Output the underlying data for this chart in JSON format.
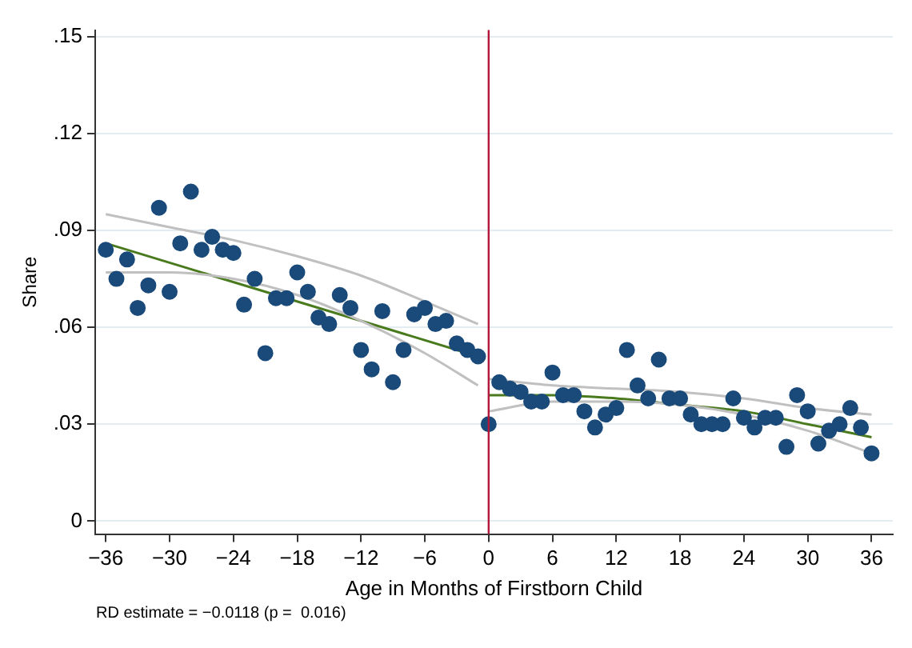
{
  "chart_data": {
    "type": "scatter",
    "xlabel": "Age in Months of Firstborn Child",
    "ylabel": "Share",
    "annotations": [
      "RD estimate = −0.0118 (p =  0.016)"
    ],
    "xlim": [
      -37,
      38
    ],
    "xticks": [
      {
        "value": -36,
        "label": "−36"
      },
      {
        "value": -30,
        "label": "−30"
      },
      {
        "value": -24,
        "label": "−24"
      },
      {
        "value": -18,
        "label": "−18"
      },
      {
        "value": -12,
        "label": "−12"
      },
      {
        "value": -6,
        "label": "−6"
      },
      0,
      6,
      12,
      18,
      24,
      30,
      36
    ],
    "ylim": [
      -0.004,
      0.152
    ],
    "yticks": [
      0,
      {
        "value": 0.03,
        "label": ".03"
      },
      {
        "value": 0.06,
        "label": ".06"
      },
      {
        "value": 0.09,
        "label": ".09"
      },
      {
        "value": 0.12,
        "label": ".12"
      },
      {
        "value": 0.15,
        "label": ".15"
      }
    ],
    "grid": "y",
    "legend": false,
    "ref_lines": [
      {
        "axis": "x",
        "value": 0,
        "color": "#b2163a"
      }
    ],
    "series": [
      {
        "marker": "circle",
        "color": "#1a4a7a",
        "x": [
          -36,
          -35,
          -34,
          -33,
          -32,
          -31,
          -30,
          -29,
          -28,
          -27,
          -26,
          -25,
          -24,
          -23,
          -22,
          -21,
          -20,
          -19,
          -18,
          -17,
          -16,
          -15,
          -14,
          -13,
          -12,
          -11,
          -10,
          -9,
          -8,
          -7,
          -6,
          -5,
          -4,
          -3,
          -2,
          -1,
          0,
          1,
          2,
          3,
          4,
          5,
          6,
          7,
          8,
          9,
          10,
          11,
          12,
          13,
          14,
          15,
          16,
          17,
          18,
          19,
          20,
          21,
          22,
          23,
          24,
          25,
          26,
          27,
          28,
          29,
          30,
          31,
          32,
          33,
          34,
          35,
          36
        ],
        "values": [
          0.084,
          0.075,
          0.081,
          0.066,
          0.073,
          0.097,
          0.071,
          0.086,
          0.102,
          0.084,
          0.088,
          0.084,
          0.083,
          0.067,
          0.075,
          0.052,
          0.069,
          0.069,
          0.077,
          0.071,
          0.063,
          0.061,
          0.07,
          0.066,
          0.053,
          0.047,
          0.065,
          0.043,
          0.053,
          0.064,
          0.066,
          0.061,
          0.062,
          0.055,
          0.053,
          0.051,
          0.03,
          0.043,
          0.041,
          0.04,
          0.037,
          0.037,
          0.046,
          0.039,
          0.039,
          0.034,
          0.029,
          0.033,
          0.035,
          0.053,
          0.042,
          0.038,
          0.05,
          0.038,
          0.038,
          0.033,
          0.03,
          0.03,
          0.03,
          0.038,
          0.032,
          0.029,
          0.032,
          0.032,
          0.023,
          0.039,
          0.034,
          0.024,
          0.028,
          0.03,
          0.035,
          0.029,
          0.021
        ]
      },
      {
        "type": "line",
        "color": "#c0c0c0",
        "x": [
          -36,
          -30,
          -24,
          -18,
          -12,
          -6,
          -1
        ],
        "values": [
          0.095,
          0.091,
          0.087,
          0.082,
          0.076,
          0.068,
          0.061
        ]
      },
      {
        "type": "line",
        "color": "#c0c0c0",
        "x": [
          -36,
          -30,
          -24,
          -18,
          -12,
          -6,
          -1
        ],
        "values": [
          0.077,
          0.077,
          0.075,
          0.07,
          0.062,
          0.052,
          0.042
        ]
      },
      {
        "type": "line",
        "color": "#4a7a1e",
        "x": [
          -36,
          -1
        ],
        "values": [
          0.086,
          0.051
        ]
      },
      {
        "type": "line",
        "color": "#c0c0c0",
        "x": [
          0,
          6,
          12,
          18,
          24,
          30,
          36
        ],
        "values": [
          0.044,
          0.042,
          0.041,
          0.04,
          0.038,
          0.035,
          0.033
        ]
      },
      {
        "type": "line",
        "color": "#c0c0c0",
        "x": [
          0,
          6,
          12,
          18,
          24,
          30,
          36
        ],
        "values": [
          0.034,
          0.037,
          0.037,
          0.036,
          0.033,
          0.028,
          0.021
        ]
      },
      {
        "type": "line",
        "color": "#4a7a1e",
        "x": [
          0,
          6,
          12,
          18,
          24,
          30,
          36
        ],
        "values": [
          0.039,
          0.039,
          0.038,
          0.036,
          0.034,
          0.03,
          0.026
        ]
      }
    ]
  }
}
